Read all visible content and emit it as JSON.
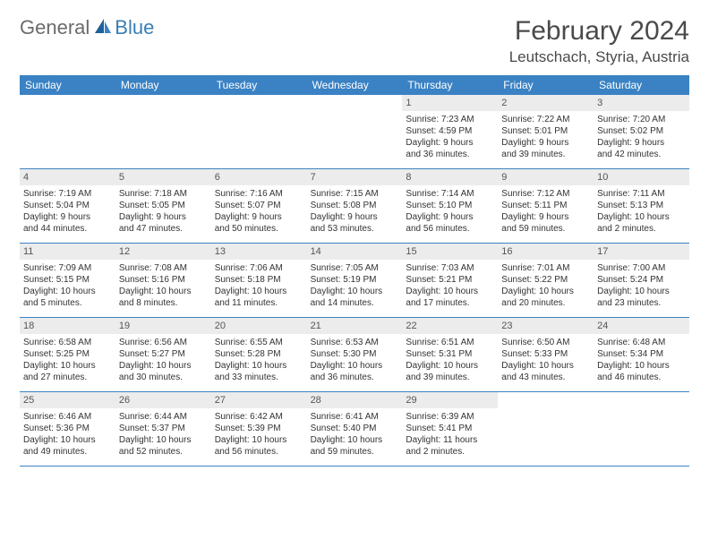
{
  "brand": {
    "general": "General",
    "blue": "Blue"
  },
  "title": "February 2024",
  "location": "Leutschach, Styria, Austria",
  "colors": {
    "header_bg": "#3a82c4",
    "header_text": "#ffffff",
    "daynum_bg": "#ececec",
    "border": "#3a82c4",
    "body_text": "#333333",
    "brand_gray": "#6b6b6b",
    "brand_blue": "#3a7fb5"
  },
  "weekdays": [
    "Sunday",
    "Monday",
    "Tuesday",
    "Wednesday",
    "Thursday",
    "Friday",
    "Saturday"
  ],
  "weeks": [
    [
      {
        "n": "",
        "sr": "",
        "ss": "",
        "dl1": "",
        "dl2": ""
      },
      {
        "n": "",
        "sr": "",
        "ss": "",
        "dl1": "",
        "dl2": ""
      },
      {
        "n": "",
        "sr": "",
        "ss": "",
        "dl1": "",
        "dl2": ""
      },
      {
        "n": "",
        "sr": "",
        "ss": "",
        "dl1": "",
        "dl2": ""
      },
      {
        "n": "1",
        "sr": "Sunrise: 7:23 AM",
        "ss": "Sunset: 4:59 PM",
        "dl1": "Daylight: 9 hours",
        "dl2": "and 36 minutes."
      },
      {
        "n": "2",
        "sr": "Sunrise: 7:22 AM",
        "ss": "Sunset: 5:01 PM",
        "dl1": "Daylight: 9 hours",
        "dl2": "and 39 minutes."
      },
      {
        "n": "3",
        "sr": "Sunrise: 7:20 AM",
        "ss": "Sunset: 5:02 PM",
        "dl1": "Daylight: 9 hours",
        "dl2": "and 42 minutes."
      }
    ],
    [
      {
        "n": "4",
        "sr": "Sunrise: 7:19 AM",
        "ss": "Sunset: 5:04 PM",
        "dl1": "Daylight: 9 hours",
        "dl2": "and 44 minutes."
      },
      {
        "n": "5",
        "sr": "Sunrise: 7:18 AM",
        "ss": "Sunset: 5:05 PM",
        "dl1": "Daylight: 9 hours",
        "dl2": "and 47 minutes."
      },
      {
        "n": "6",
        "sr": "Sunrise: 7:16 AM",
        "ss": "Sunset: 5:07 PM",
        "dl1": "Daylight: 9 hours",
        "dl2": "and 50 minutes."
      },
      {
        "n": "7",
        "sr": "Sunrise: 7:15 AM",
        "ss": "Sunset: 5:08 PM",
        "dl1": "Daylight: 9 hours",
        "dl2": "and 53 minutes."
      },
      {
        "n": "8",
        "sr": "Sunrise: 7:14 AM",
        "ss": "Sunset: 5:10 PM",
        "dl1": "Daylight: 9 hours",
        "dl2": "and 56 minutes."
      },
      {
        "n": "9",
        "sr": "Sunrise: 7:12 AM",
        "ss": "Sunset: 5:11 PM",
        "dl1": "Daylight: 9 hours",
        "dl2": "and 59 minutes."
      },
      {
        "n": "10",
        "sr": "Sunrise: 7:11 AM",
        "ss": "Sunset: 5:13 PM",
        "dl1": "Daylight: 10 hours",
        "dl2": "and 2 minutes."
      }
    ],
    [
      {
        "n": "11",
        "sr": "Sunrise: 7:09 AM",
        "ss": "Sunset: 5:15 PM",
        "dl1": "Daylight: 10 hours",
        "dl2": "and 5 minutes."
      },
      {
        "n": "12",
        "sr": "Sunrise: 7:08 AM",
        "ss": "Sunset: 5:16 PM",
        "dl1": "Daylight: 10 hours",
        "dl2": "and 8 minutes."
      },
      {
        "n": "13",
        "sr": "Sunrise: 7:06 AM",
        "ss": "Sunset: 5:18 PM",
        "dl1": "Daylight: 10 hours",
        "dl2": "and 11 minutes."
      },
      {
        "n": "14",
        "sr": "Sunrise: 7:05 AM",
        "ss": "Sunset: 5:19 PM",
        "dl1": "Daylight: 10 hours",
        "dl2": "and 14 minutes."
      },
      {
        "n": "15",
        "sr": "Sunrise: 7:03 AM",
        "ss": "Sunset: 5:21 PM",
        "dl1": "Daylight: 10 hours",
        "dl2": "and 17 minutes."
      },
      {
        "n": "16",
        "sr": "Sunrise: 7:01 AM",
        "ss": "Sunset: 5:22 PM",
        "dl1": "Daylight: 10 hours",
        "dl2": "and 20 minutes."
      },
      {
        "n": "17",
        "sr": "Sunrise: 7:00 AM",
        "ss": "Sunset: 5:24 PM",
        "dl1": "Daylight: 10 hours",
        "dl2": "and 23 minutes."
      }
    ],
    [
      {
        "n": "18",
        "sr": "Sunrise: 6:58 AM",
        "ss": "Sunset: 5:25 PM",
        "dl1": "Daylight: 10 hours",
        "dl2": "and 27 minutes."
      },
      {
        "n": "19",
        "sr": "Sunrise: 6:56 AM",
        "ss": "Sunset: 5:27 PM",
        "dl1": "Daylight: 10 hours",
        "dl2": "and 30 minutes."
      },
      {
        "n": "20",
        "sr": "Sunrise: 6:55 AM",
        "ss": "Sunset: 5:28 PM",
        "dl1": "Daylight: 10 hours",
        "dl2": "and 33 minutes."
      },
      {
        "n": "21",
        "sr": "Sunrise: 6:53 AM",
        "ss": "Sunset: 5:30 PM",
        "dl1": "Daylight: 10 hours",
        "dl2": "and 36 minutes."
      },
      {
        "n": "22",
        "sr": "Sunrise: 6:51 AM",
        "ss": "Sunset: 5:31 PM",
        "dl1": "Daylight: 10 hours",
        "dl2": "and 39 minutes."
      },
      {
        "n": "23",
        "sr": "Sunrise: 6:50 AM",
        "ss": "Sunset: 5:33 PM",
        "dl1": "Daylight: 10 hours",
        "dl2": "and 43 minutes."
      },
      {
        "n": "24",
        "sr": "Sunrise: 6:48 AM",
        "ss": "Sunset: 5:34 PM",
        "dl1": "Daylight: 10 hours",
        "dl2": "and 46 minutes."
      }
    ],
    [
      {
        "n": "25",
        "sr": "Sunrise: 6:46 AM",
        "ss": "Sunset: 5:36 PM",
        "dl1": "Daylight: 10 hours",
        "dl2": "and 49 minutes."
      },
      {
        "n": "26",
        "sr": "Sunrise: 6:44 AM",
        "ss": "Sunset: 5:37 PM",
        "dl1": "Daylight: 10 hours",
        "dl2": "and 52 minutes."
      },
      {
        "n": "27",
        "sr": "Sunrise: 6:42 AM",
        "ss": "Sunset: 5:39 PM",
        "dl1": "Daylight: 10 hours",
        "dl2": "and 56 minutes."
      },
      {
        "n": "28",
        "sr": "Sunrise: 6:41 AM",
        "ss": "Sunset: 5:40 PM",
        "dl1": "Daylight: 10 hours",
        "dl2": "and 59 minutes."
      },
      {
        "n": "29",
        "sr": "Sunrise: 6:39 AM",
        "ss": "Sunset: 5:41 PM",
        "dl1": "Daylight: 11 hours",
        "dl2": "and 2 minutes."
      },
      {
        "n": "",
        "sr": "",
        "ss": "",
        "dl1": "",
        "dl2": ""
      },
      {
        "n": "",
        "sr": "",
        "ss": "",
        "dl1": "",
        "dl2": ""
      }
    ]
  ]
}
